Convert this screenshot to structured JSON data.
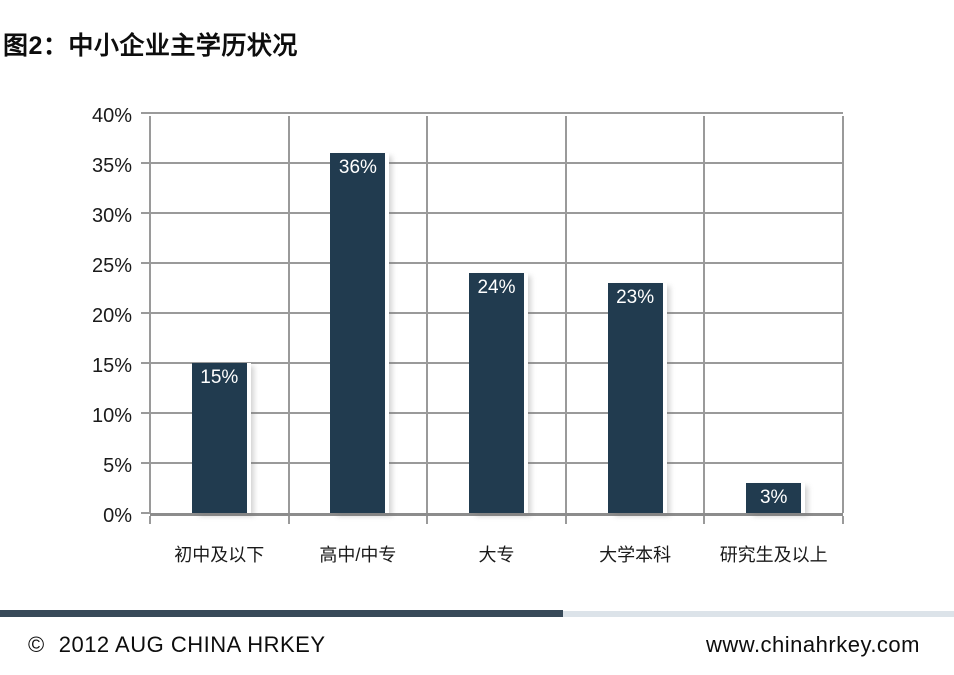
{
  "title": "图2：中小企业主学历状况",
  "chart_data": {
    "type": "bar",
    "title": "图2：中小企业主学历状况",
    "categories": [
      "初中及以下",
      "高中/中专",
      "大专",
      "大学本科",
      "研究生及以上"
    ],
    "values": [
      15,
      36,
      24,
      23,
      3
    ],
    "bar_labels": [
      "15%",
      "36%",
      "24%",
      "23%",
      "3%"
    ],
    "y_ticks": [
      0,
      5,
      10,
      15,
      20,
      25,
      30,
      35,
      40
    ],
    "y_tick_labels": [
      "0%",
      "5%",
      "10%",
      "15%",
      "20%",
      "25%",
      "30%",
      "35%",
      "40%"
    ],
    "ylim": [
      0,
      40
    ],
    "xlabel": "",
    "ylabel": "",
    "grid": true,
    "legend": false,
    "bar_color": "#213B4F",
    "bar_label_color": "#FFFFFF",
    "gridline_color": "#9A9A9A"
  },
  "footer": {
    "copyright_symbol": "©",
    "copyright_text": "2012 AUG CHINA HRKEY",
    "website": "www.chinahrkey.com",
    "divider_dark_color": "#384A59",
    "divider_light_color": "#DCE3E9"
  }
}
